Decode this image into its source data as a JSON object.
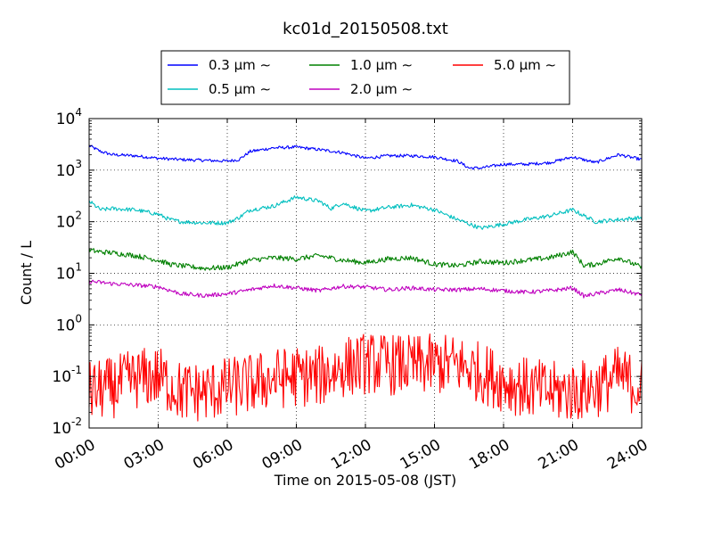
{
  "chart_data": {
    "type": "line",
    "title": "kc01d_20150508.txt",
    "xlabel": "Time on 2015-05-08 (JST)",
    "ylabel": "Count / L",
    "xlim_hours": [
      0,
      24
    ],
    "x_tick_labels": [
      "00:00",
      "03:00",
      "06:00",
      "09:00",
      "12:00",
      "15:00",
      "18:00",
      "21:00",
      "24:00"
    ],
    "yscale": "log",
    "ylim": [
      0.01,
      10000
    ],
    "y_tick_labels": [
      {
        "base": "10",
        "exp": "-2"
      },
      {
        "base": "10",
        "exp": "-1"
      },
      {
        "base": "10",
        "exp": "0"
      },
      {
        "base": "10",
        "exp": "1"
      },
      {
        "base": "10",
        "exp": "2"
      },
      {
        "base": "10",
        "exp": "3"
      },
      {
        "base": "10",
        "exp": "4"
      }
    ],
    "grid": true,
    "legend_position": "top (outside, above plot)",
    "legend_columns": 3,
    "series": [
      {
        "name": "0.3 μm ∼",
        "color": "#0000ff",
        "noise": 0.03,
        "x": [
          0,
          0.5,
          1,
          2,
          3,
          4,
          5,
          6,
          6.5,
          7,
          8,
          9,
          10,
          11,
          12,
          13,
          14,
          15,
          16,
          16.5,
          17,
          18,
          19,
          20,
          21,
          22,
          23,
          24
        ],
        "values": [
          3000,
          2300,
          2000,
          1900,
          1700,
          1600,
          1550,
          1500,
          1600,
          2300,
          2700,
          2800,
          2500,
          2200,
          1700,
          1900,
          1900,
          1800,
          1500,
          1100,
          1100,
          1300,
          1300,
          1400,
          1800,
          1400,
          2000,
          1600
        ]
      },
      {
        "name": "0.5 μm ∼",
        "color": "#00bfbf",
        "noise": 0.04,
        "x": [
          0,
          0.5,
          1,
          2,
          3,
          3.5,
          4,
          5,
          6,
          6.5,
          7,
          8,
          9,
          10,
          10.5,
          11,
          12,
          13,
          14,
          15,
          16,
          17,
          18,
          19,
          20,
          21,
          22,
          23,
          24
        ],
        "values": [
          250,
          170,
          180,
          170,
          140,
          110,
          100,
          95,
          95,
          120,
          170,
          200,
          300,
          250,
          180,
          230,
          160,
          190,
          210,
          170,
          110,
          75,
          90,
          110,
          130,
          170,
          100,
          110,
          120
        ]
      },
      {
        "name": "1.0 μm ∼",
        "color": "#008000",
        "noise": 0.05,
        "x": [
          0,
          0.5,
          1,
          2,
          3,
          3.5,
          4,
          5,
          6,
          7,
          8,
          9,
          10,
          11,
          12,
          13,
          14,
          15,
          16,
          17,
          18,
          19,
          20,
          21,
          21.5,
          22,
          23,
          24
        ],
        "values": [
          28,
          26,
          25,
          22,
          18,
          15,
          14,
          12.5,
          13,
          18,
          20,
          19,
          22,
          18,
          16,
          19,
          20,
          15,
          14,
          17,
          16,
          18,
          20,
          26,
          14,
          15,
          20,
          13
        ]
      },
      {
        "name": "2.0 μm ∼",
        "color": "#bf00bf",
        "noise": 0.04,
        "x": [
          0,
          1,
          2,
          3,
          4,
          5,
          6,
          7,
          8,
          9,
          10,
          11,
          12,
          13,
          14,
          15,
          16,
          17,
          18,
          19,
          20,
          21,
          21.5,
          22,
          23,
          24
        ],
        "values": [
          7,
          6.3,
          5.9,
          5.5,
          4,
          3.7,
          4,
          4.8,
          5.8,
          5.2,
          4.6,
          5.6,
          5.4,
          4.8,
          5.2,
          4.8,
          4.8,
          5.0,
          4.6,
          4.3,
          4.6,
          5.2,
          3.6,
          4.0,
          4.8,
          3.8
        ]
      },
      {
        "name": "5.0 μm ∼",
        "color": "#ff0000",
        "noise": 0.6,
        "x": [
          0,
          1,
          2,
          3,
          4,
          5,
          6,
          7,
          8,
          9,
          10,
          11,
          12,
          13,
          14,
          15,
          16,
          17,
          18,
          19,
          20,
          21,
          22,
          23,
          24
        ],
        "values": [
          0.05,
          0.06,
          0.09,
          0.1,
          0.05,
          0.05,
          0.06,
          0.07,
          0.09,
          0.1,
          0.1,
          0.15,
          0.18,
          0.17,
          0.16,
          0.17,
          0.17,
          0.12,
          0.08,
          0.06,
          0.05,
          0.05,
          0.06,
          0.1,
          0.06
        ]
      }
    ]
  }
}
